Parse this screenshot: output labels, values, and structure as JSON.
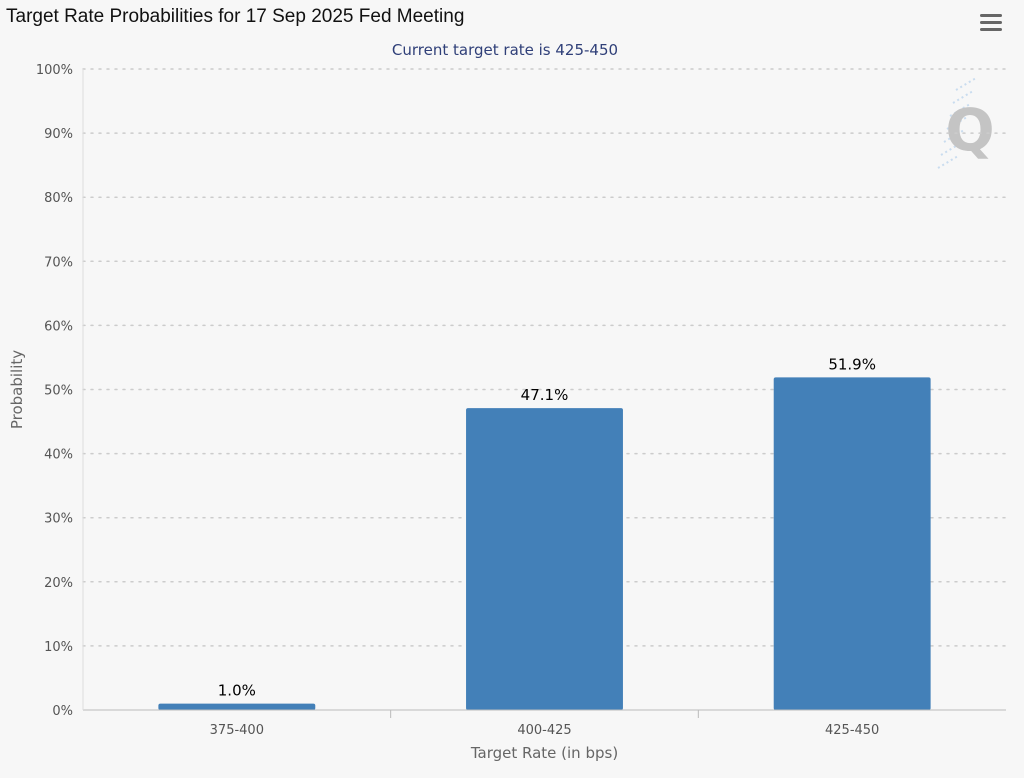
{
  "title": "Target Rate Probabilities for 17 Sep 2025 Fed Meeting",
  "colors": {
    "bar": "#4380b8",
    "subtitle": "#2f3f78",
    "grid": "#cccccc",
    "axis_text": "#555555",
    "axis_label": "#666666"
  },
  "icons": {
    "menu": "hamburger-menu-icon",
    "watermark": "q-logo-watermark"
  },
  "watermark_letter": "Q",
  "chart_data": {
    "type": "bar",
    "title": "Target Rate Probabilities for 17 Sep 2025 Fed Meeting",
    "subtitle": "Current target rate is 425-450",
    "xlabel": "Target Rate (in bps)",
    "ylabel": "Probability",
    "categories": [
      "375-400",
      "400-425",
      "425-450"
    ],
    "values": [
      1.0,
      47.1,
      51.9
    ],
    "data_labels": [
      "1.0%",
      "47.1%",
      "51.9%"
    ],
    "ylim": [
      0,
      100
    ],
    "yticks": [
      0,
      10,
      20,
      30,
      40,
      50,
      60,
      70,
      80,
      90,
      100
    ],
    "ytick_labels": [
      "0%",
      "10%",
      "20%",
      "30%",
      "40%",
      "50%",
      "60%",
      "70%",
      "80%",
      "90%",
      "100%"
    ],
    "grid": true,
    "legend": "none"
  }
}
